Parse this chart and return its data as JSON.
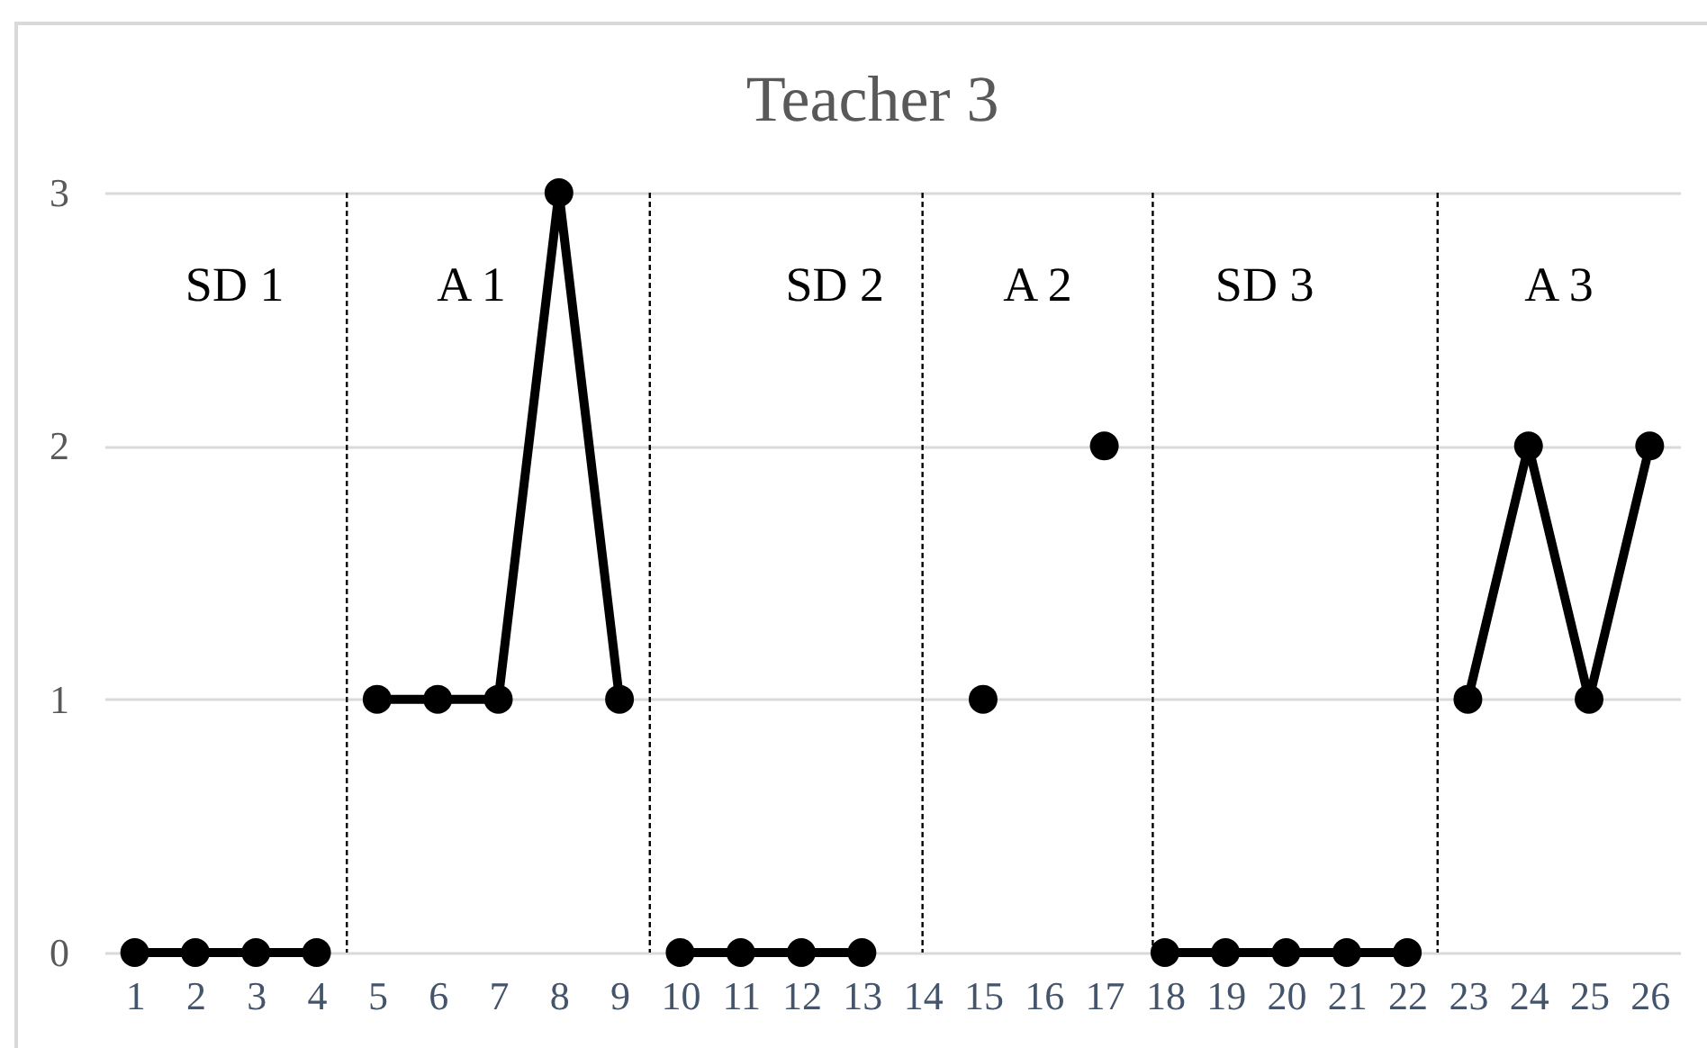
{
  "chart_data": {
    "type": "line",
    "title": "Teacher 3",
    "xlim": [
      0.5,
      26.5
    ],
    "xticks": [
      1,
      2,
      3,
      4,
      5,
      6,
      7,
      8,
      9,
      10,
      11,
      12,
      13,
      14,
      15,
      16,
      17,
      18,
      19,
      20,
      21,
      22,
      23,
      24,
      25,
      26
    ],
    "ylim": [
      0,
      3
    ],
    "yticks": [
      0,
      1,
      2,
      3
    ],
    "grid": "y",
    "marker": "circle",
    "series": [
      {
        "color": "#000000",
        "x": [
          1,
          2,
          3,
          4
        ],
        "values": [
          0,
          0,
          0,
          0
        ]
      },
      {
        "color": "#000000",
        "x": [
          5,
          6,
          7,
          8,
          9
        ],
        "values": [
          1,
          1,
          1,
          3,
          1
        ]
      },
      {
        "color": "#000000",
        "x": [
          10,
          11,
          12,
          13
        ],
        "values": [
          0,
          0,
          0,
          0
        ]
      },
      {
        "color": "#000000",
        "x": [
          15,
          16,
          17
        ],
        "values": [
          1,
          null,
          2
        ]
      },
      {
        "color": "#000000",
        "x": [
          18,
          19,
          20,
          21,
          22
        ],
        "values": [
          0,
          0,
          0,
          0,
          0
        ]
      },
      {
        "color": "#000000",
        "x": [
          23,
          24,
          25,
          26
        ],
        "values": [
          1,
          2,
          1,
          2
        ]
      }
    ],
    "ref_lines": [
      {
        "axis": "x",
        "value": 4.5,
        "color": "#000000",
        "line_style": "dashed"
      },
      {
        "axis": "x",
        "value": 9.5,
        "color": "#000000",
        "line_style": "dashed"
      },
      {
        "axis": "x",
        "value": 14,
        "color": "#000000",
        "line_style": "dashed"
      },
      {
        "axis": "x",
        "value": 17.8,
        "color": "#000000",
        "line_style": "dashed"
      },
      {
        "axis": "x",
        "value": 22.5,
        "color": "#000000",
        "line_style": "dashed"
      }
    ],
    "annotations": [
      "SD 1",
      "A 1",
      "SD 2",
      "A 2",
      "SD 3",
      "A 3"
    ]
  }
}
